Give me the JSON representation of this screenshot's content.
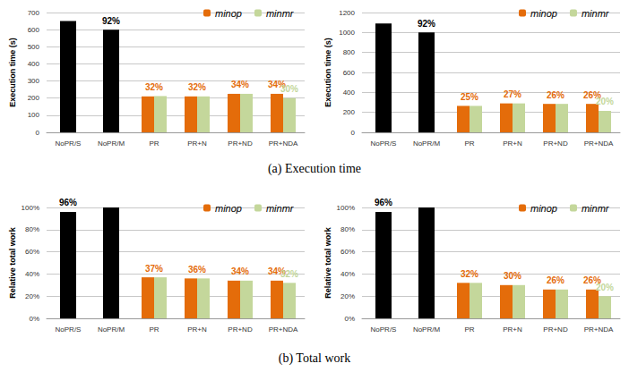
{
  "captions": [
    "(a) Execution time",
    "(b) Total work"
  ],
  "chart_data": [
    {
      "type": "bar",
      "ylabel": "Execution time (s)",
      "categories": [
        "NoPR/S",
        "NoPR/M",
        "PR",
        "PR+N",
        "PR+ND",
        "PR+NDA"
      ],
      "ylim": [
        0,
        700
      ],
      "yticks": [
        0,
        100,
        200,
        300,
        400,
        500,
        600,
        700
      ],
      "grid": true,
      "legend": "top-right",
      "series": [
        {
          "color": "#000000",
          "values": [
            650,
            600,
            null,
            null,
            null,
            null
          ],
          "annotations": [
            null,
            "92%",
            null,
            null,
            null,
            null
          ]
        },
        {
          "name": "minop",
          "color": "#e46c0a",
          "values": [
            null,
            null,
            210,
            210,
            225,
            225
          ],
          "annotations": [
            null,
            null,
            "32%",
            "32%",
            "34%",
            "34%"
          ]
        },
        {
          "name": "minmr",
          "color": "#c4d79b",
          "values": [
            null,
            null,
            212,
            210,
            225,
            200
          ],
          "annotations": [
            null,
            null,
            null,
            null,
            null,
            "30%"
          ]
        }
      ]
    },
    {
      "type": "bar",
      "ylabel": "Execution time (s)",
      "categories": [
        "NoPR/S",
        "NoPR/M",
        "PR",
        "PR+N",
        "PR+ND",
        "PR+NDA"
      ],
      "ylim": [
        0,
        1200
      ],
      "yticks": [
        0,
        200,
        400,
        600,
        800,
        1000,
        1200
      ],
      "grid": true,
      "legend": "top-right",
      "series": [
        {
          "color": "#000000",
          "values": [
            1090,
            1000,
            null,
            null,
            null,
            null
          ],
          "annotations": [
            null,
            "92%",
            null,
            null,
            null,
            null
          ]
        },
        {
          "name": "minop",
          "color": "#e46c0a",
          "values": [
            null,
            null,
            265,
            290,
            285,
            285
          ],
          "annotations": [
            null,
            null,
            "25%",
            "27%",
            "26%",
            "26%"
          ]
        },
        {
          "name": "minmr",
          "color": "#c4d79b",
          "values": [
            null,
            null,
            265,
            290,
            285,
            215
          ],
          "annotations": [
            null,
            null,
            null,
            null,
            null,
            "20%"
          ]
        }
      ]
    },
    {
      "type": "bar",
      "ylabel": "Relative total work",
      "categories": [
        "NoPR/S",
        "NoPR/M",
        "PR",
        "PR+N",
        "PR+ND",
        "PR+NDA"
      ],
      "ylim": [
        0,
        100
      ],
      "yticks": [
        {
          "value": 0,
          "label": "0%"
        },
        {
          "value": 20,
          "label": "20%"
        },
        {
          "value": 40,
          "label": "40%"
        },
        {
          "value": 60,
          "label": "60%"
        },
        {
          "value": 80,
          "label": "80%"
        },
        {
          "value": 100,
          "label": "100%"
        }
      ],
      "grid": true,
      "legend": "top-right",
      "series": [
        {
          "color": "#000000",
          "values": [
            96,
            100,
            null,
            null,
            null,
            null
          ],
          "annotations": [
            "96%",
            null,
            null,
            null,
            null,
            null
          ]
        },
        {
          "name": "minop",
          "color": "#e46c0a",
          "values": [
            null,
            null,
            37,
            36,
            34,
            34
          ],
          "annotations": [
            null,
            null,
            "37%",
            "36%",
            "34%",
            "34%"
          ]
        },
        {
          "name": "minmr",
          "color": "#c4d79b",
          "values": [
            null,
            null,
            37,
            36,
            34,
            32
          ],
          "annotations": [
            null,
            null,
            null,
            null,
            null,
            "32%"
          ]
        }
      ]
    },
    {
      "type": "bar",
      "ylabel": "Relative total work",
      "categories": [
        "NoPR/S",
        "NoPR/M",
        "PR",
        "PR+N",
        "PR+ND",
        "PR+NDA"
      ],
      "ylim": [
        0,
        100
      ],
      "yticks": [
        {
          "value": 0,
          "label": "0%"
        },
        {
          "value": 20,
          "label": "20%"
        },
        {
          "value": 40,
          "label": "40%"
        },
        {
          "value": 60,
          "label": "60%"
        },
        {
          "value": 80,
          "label": "80%"
        },
        {
          "value": 100,
          "label": "100%"
        }
      ],
      "grid": true,
      "legend": "top-right",
      "series": [
        {
          "color": "#000000",
          "values": [
            96,
            100,
            null,
            null,
            null,
            null
          ],
          "annotations": [
            "96%",
            null,
            null,
            null,
            null,
            null
          ]
        },
        {
          "name": "minop",
          "color": "#e46c0a",
          "values": [
            null,
            null,
            32,
            30,
            26,
            26
          ],
          "annotations": [
            null,
            null,
            "32%",
            "30%",
            "26%",
            "26%"
          ]
        },
        {
          "name": "minmr",
          "color": "#c4d79b",
          "values": [
            null,
            null,
            32,
            30,
            26,
            20
          ],
          "annotations": [
            null,
            null,
            null,
            null,
            null,
            "20%"
          ]
        }
      ]
    }
  ]
}
